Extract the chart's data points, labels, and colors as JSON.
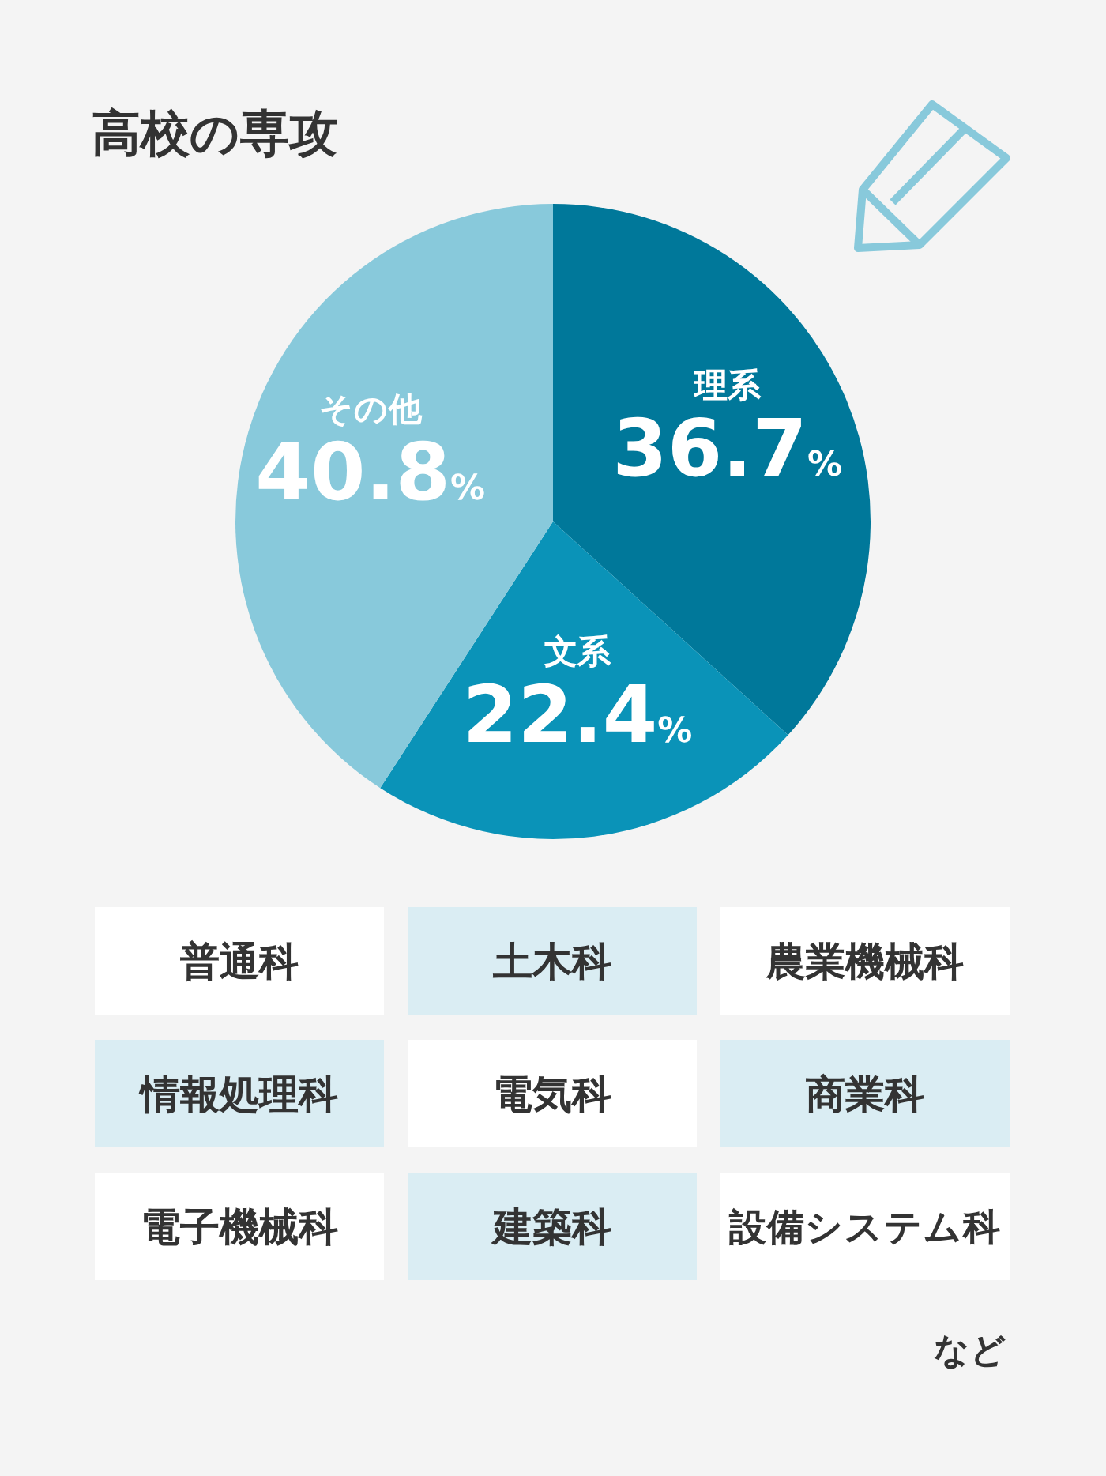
{
  "chart_data": {
    "type": "pie",
    "title": "高校の専攻",
    "categories": [
      "理系",
      "文系",
      "その他"
    ],
    "values": [
      36.7,
      22.4,
      40.8
    ],
    "colors": [
      "#00789a",
      "#0a93b8",
      "#88c9db"
    ],
    "value_labels": [
      "36.7%",
      "22.4%",
      "40.8%"
    ],
    "annotations": [
      "普通科",
      "土木科",
      "農業機械科",
      "情報処理科",
      "電気科",
      "商業科",
      "電子機械科",
      "建築科",
      "設備システム科",
      "など"
    ]
  }
}
